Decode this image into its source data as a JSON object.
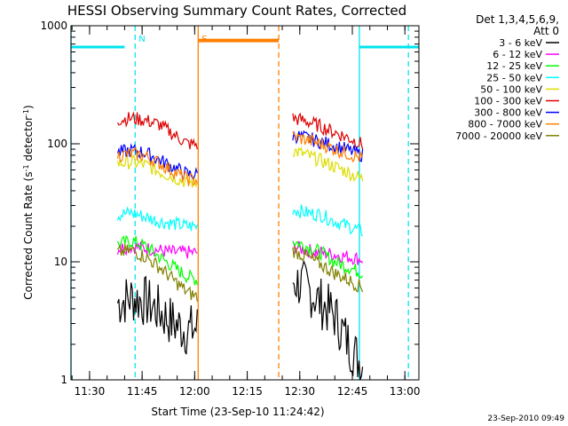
{
  "chart_data": {
    "type": "line",
    "title": "HESSI Observing Summary Count Rates, Corrected",
    "xlabel": "Start Time (23-Sep-10 11:24:42)",
    "ylabel_main": "Corrected Count Rate (s",
    "ylabel_sup1": "-1",
    "ylabel_mid": " detector",
    "ylabel_sup2": "-1",
    "ylabel_end": ")",
    "yscale": "log",
    "ylim": [
      1,
      1000
    ],
    "xlim": [
      "11:24:42",
      "13:04"
    ],
    "x_ticks": [
      "11:30",
      "11:45",
      "12:00",
      "12:15",
      "12:30",
      "12:45",
      "13:00"
    ],
    "y_ticks": [
      "1",
      "10",
      "100",
      "1000"
    ],
    "legend_header": [
      "Det 1,3,4,5,6,9,",
      "Att 0"
    ],
    "legend_position": "right",
    "series": [
      {
        "name": "3 - 6 keV",
        "color": "#000000",
        "x": [
          "11:38",
          "11:42",
          "11:46",
          "11:50",
          "11:54",
          "11:58",
          "12:01",
          "12:28",
          "12:32",
          "12:36",
          "12:40",
          "12:44",
          "12:48"
        ],
        "values": [
          4.5,
          5,
          4.6,
          3.8,
          3,
          2.6,
          2.8,
          7,
          6,
          4.5,
          3.5,
          2,
          1.3
        ]
      },
      {
        "name": "6 - 12 keV",
        "color": "#ff00ff",
        "x": [
          "11:38",
          "11:42",
          "11:46",
          "11:50",
          "11:54",
          "11:58",
          "12:01",
          "12:28",
          "12:32",
          "12:36",
          "12:40",
          "12:44",
          "12:48"
        ],
        "values": [
          13,
          13.5,
          13,
          12.5,
          12,
          12,
          12,
          13.5,
          12.5,
          12,
          11.5,
          11,
          10.5
        ]
      },
      {
        "name": "12 - 25 keV",
        "color": "#00ff00",
        "x": [
          "11:38",
          "11:42",
          "11:46",
          "11:50",
          "11:54",
          "11:58",
          "12:01",
          "12:28",
          "12:32",
          "12:36",
          "12:40",
          "12:44",
          "12:48"
        ],
        "values": [
          14,
          15,
          13.5,
          11,
          9,
          7.5,
          7,
          15,
          13.5,
          12,
          10,
          9,
          8
        ]
      },
      {
        "name": "25 - 50 keV",
        "color": "#00ffff",
        "x": [
          "11:38",
          "11:42",
          "11:46",
          "11:50",
          "11:54",
          "11:58",
          "12:01",
          "12:28",
          "12:32",
          "12:36",
          "12:40",
          "12:44",
          "12:48"
        ],
        "values": [
          25,
          26,
          24,
          22,
          21,
          20,
          20,
          28,
          26,
          25,
          22,
          20,
          18
        ]
      },
      {
        "name": "50 - 100 keV",
        "color": "#dddd00",
        "x": [
          "11:38",
          "11:42",
          "11:46",
          "11:50",
          "11:54",
          "11:58",
          "12:01",
          "12:28",
          "12:32",
          "12:36",
          "12:40",
          "12:44",
          "12:48"
        ],
        "values": [
          68,
          70,
          66,
          58,
          52,
          47,
          47,
          88,
          80,
          72,
          64,
          57,
          50
        ]
      },
      {
        "name": "100 - 300 keV",
        "color": "#dd0000",
        "x": [
          "11:38",
          "11:42",
          "11:46",
          "11:50",
          "11:54",
          "11:58",
          "12:01",
          "12:28",
          "12:32",
          "12:36",
          "12:40",
          "12:44",
          "12:48"
        ],
        "values": [
          160,
          165,
          158,
          145,
          120,
          100,
          98,
          165,
          155,
          140,
          125,
          112,
          98
        ]
      },
      {
        "name": "300 - 800 keV",
        "color": "#0000ff",
        "x": [
          "11:38",
          "11:42",
          "11:46",
          "11:50",
          "11:54",
          "11:58",
          "12:01",
          "12:28",
          "12:32",
          "12:36",
          "12:40",
          "12:44",
          "12:48"
        ],
        "values": [
          84,
          88,
          84,
          73,
          63,
          55,
          55,
          118,
          112,
          104,
          96,
          88,
          80
        ]
      },
      {
        "name": "800 - 7000 keV",
        "color": "#ff8000",
        "x": [
          "11:38",
          "11:42",
          "11:46",
          "11:50",
          "11:54",
          "11:58",
          "12:01",
          "12:28",
          "12:32",
          "12:36",
          "12:40",
          "12:44",
          "12:48"
        ],
        "values": [
          80,
          82,
          79,
          68,
          58,
          50,
          49,
          115,
          108,
          100,
          90,
          82,
          75
        ]
      },
      {
        "name": "7000 - 20000 keV",
        "color": "#808000",
        "x": [
          "11:38",
          "11:42",
          "11:46",
          "11:50",
          "11:54",
          "11:58",
          "12:01",
          "12:28",
          "12:32",
          "12:36",
          "12:40",
          "12:44",
          "12:48"
        ],
        "values": [
          12,
          12.5,
          11,
          9,
          7,
          5.5,
          5,
          12.5,
          11,
          9.5,
          8,
          7,
          6
        ]
      }
    ],
    "status_bars": [
      {
        "label": "",
        "color": "#00e5ee",
        "x": [
          "11:24:42",
          "11:40"
        ],
        "level": 660
      },
      {
        "label": "",
        "color": "#00e5ee",
        "x": [
          "12:47",
          "13:04"
        ],
        "level": 660
      },
      {
        "label": "",
        "color": "#ff8000",
        "x": [
          "12:01",
          "12:24"
        ],
        "level": 750
      }
    ],
    "markers": [
      {
        "label": "N",
        "color": "#00e5ee",
        "x": "11:43",
        "style": "dashed"
      },
      {
        "label": "",
        "color": "#00e5ee",
        "x": "12:47",
        "style": "solid"
      },
      {
        "label": "",
        "color": "#00e5ee",
        "x": "13:01",
        "style": "dashed"
      },
      {
        "label": "",
        "color": "#00e5ee",
        "x": "11:24:42",
        "style": "solid"
      },
      {
        "label": "S",
        "color": "#ff8000",
        "x": "12:01",
        "style": "solid"
      },
      {
        "label": "",
        "color": "#ff8000",
        "x": "12:24",
        "style": "dashed"
      }
    ],
    "timestamp": "23-Sep-2010 09:49"
  }
}
